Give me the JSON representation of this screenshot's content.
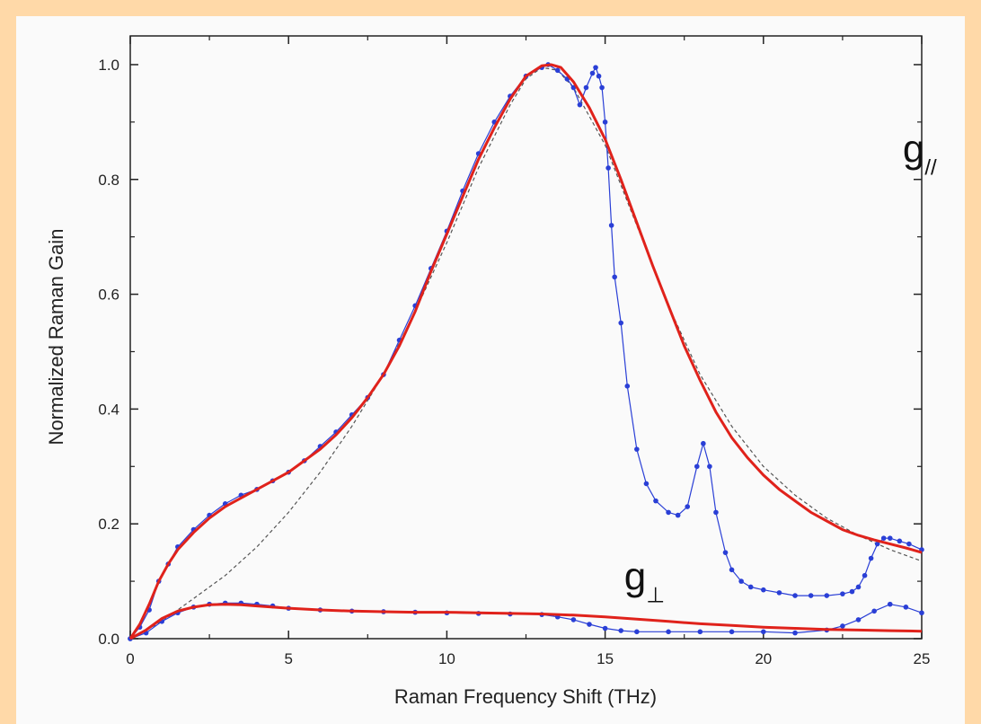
{
  "chart_data": {
    "type": "line",
    "title": "",
    "xlabel": "Raman Frequency Shift (THz)",
    "ylabel": "Normalized Raman Gain",
    "xlim": [
      0,
      25
    ],
    "ylim": [
      0,
      1.05
    ],
    "x_ticks": [
      "0",
      "5",
      "10",
      "15",
      "20",
      "25"
    ],
    "y_ticks": [
      "0.0",
      "0.2",
      "0.4",
      "0.6",
      "0.8",
      "1.0"
    ],
    "grid": false,
    "legend": "none",
    "annotations": [
      {
        "label": "g",
        "subscript": "//",
        "x": 30.5,
        "y": 0.83
      },
      {
        "label": "g",
        "subscript": "⊥",
        "x": 19.5,
        "y": 0.085
      }
    ],
    "colors": {
      "measured": "#2a3fd6",
      "fit": "#e0221b",
      "model": "#555555"
    },
    "series": [
      {
        "style": "measured",
        "x": [
          0,
          0.3,
          0.6,
          0.9,
          1.2,
          1.5,
          2,
          2.5,
          3,
          3.5,
          4,
          4.5,
          5,
          5.5,
          6,
          6.5,
          7,
          7.5,
          8,
          8.5,
          9,
          9.5,
          10,
          10.5,
          11,
          11.5,
          12,
          12.5,
          13,
          13.2,
          13.5,
          13.8,
          14,
          14.2,
          14.4,
          14.6,
          14.7,
          14.8,
          14.9,
          15,
          15.1,
          15.2,
          15.3,
          15.5,
          15.7,
          16,
          16.3,
          16.6,
          17,
          17.3,
          17.6,
          17.9,
          18.1,
          18.3,
          18.5,
          18.8,
          19,
          19.3,
          19.6,
          20,
          20.5,
          21,
          21.5,
          22,
          22.5,
          22.8,
          23,
          23.2,
          23.4,
          23.6,
          23.8,
          24,
          24.3,
          24.6,
          25
        ],
        "y": [
          0,
          0.02,
          0.05,
          0.1,
          0.13,
          0.16,
          0.19,
          0.215,
          0.235,
          0.25,
          0.26,
          0.275,
          0.29,
          0.31,
          0.335,
          0.36,
          0.39,
          0.42,
          0.46,
          0.52,
          0.58,
          0.645,
          0.71,
          0.78,
          0.845,
          0.9,
          0.945,
          0.98,
          0.995,
          1.0,
          0.99,
          0.975,
          0.96,
          0.93,
          0.96,
          0.985,
          0.995,
          0.98,
          0.96,
          0.9,
          0.82,
          0.72,
          0.63,
          0.55,
          0.44,
          0.33,
          0.27,
          0.24,
          0.22,
          0.215,
          0.23,
          0.3,
          0.34,
          0.3,
          0.22,
          0.15,
          0.12,
          0.1,
          0.09,
          0.085,
          0.08,
          0.075,
          0.075,
          0.075,
          0.078,
          0.082,
          0.09,
          0.11,
          0.14,
          0.165,
          0.175,
          0.175,
          0.17,
          0.165,
          0.155
        ]
      },
      {
        "style": "fit",
        "x": [
          0,
          0.3,
          0.6,
          0.9,
          1.2,
          1.5,
          2,
          2.5,
          3,
          3.5,
          4,
          4.5,
          5,
          5.5,
          6,
          6.5,
          7,
          7.5,
          8,
          8.5,
          9,
          9.5,
          10,
          10.5,
          11,
          11.5,
          12,
          12.5,
          13,
          13.3,
          13.6,
          14,
          14.5,
          15,
          15.5,
          16,
          16.5,
          17,
          17.5,
          18,
          18.5,
          19,
          19.5,
          20,
          20.5,
          21,
          21.5,
          22,
          22.5,
          23,
          23.5,
          24,
          24.5,
          25
        ],
        "y": [
          0,
          0.025,
          0.06,
          0.1,
          0.13,
          0.155,
          0.185,
          0.21,
          0.23,
          0.245,
          0.26,
          0.275,
          0.29,
          0.31,
          0.33,
          0.355,
          0.385,
          0.42,
          0.46,
          0.51,
          0.57,
          0.64,
          0.705,
          0.77,
          0.835,
          0.89,
          0.94,
          0.98,
          0.998,
          1.0,
          0.995,
          0.97,
          0.925,
          0.87,
          0.8,
          0.725,
          0.65,
          0.58,
          0.51,
          0.45,
          0.395,
          0.35,
          0.315,
          0.285,
          0.26,
          0.24,
          0.22,
          0.205,
          0.19,
          0.18,
          0.172,
          0.165,
          0.158,
          0.15
        ]
      },
      {
        "style": "model",
        "x": [
          0,
          1,
          2,
          3,
          4,
          5,
          6,
          7,
          8,
          9,
          10,
          11,
          12,
          12.5,
          13,
          13.5,
          14,
          15,
          16,
          17,
          18,
          19,
          20,
          21,
          22,
          23,
          24,
          25
        ],
        "y": [
          0,
          0.03,
          0.07,
          0.11,
          0.16,
          0.22,
          0.29,
          0.37,
          0.46,
          0.57,
          0.69,
          0.82,
          0.93,
          0.975,
          0.995,
          0.99,
          0.96,
          0.86,
          0.72,
          0.58,
          0.46,
          0.37,
          0.3,
          0.25,
          0.21,
          0.18,
          0.155,
          0.135
        ]
      },
      {
        "style": "measured",
        "x": [
          0,
          0.5,
          1,
          1.5,
          2,
          2.5,
          3,
          3.5,
          4,
          4.5,
          5,
          6,
          7,
          8,
          9,
          10,
          11,
          12,
          13,
          13.5,
          14,
          14.5,
          15,
          15.5,
          16,
          17,
          18,
          19,
          20,
          21,
          22,
          22.5,
          23,
          23.5,
          24,
          24.5,
          25
        ],
        "y": [
          0,
          0.01,
          0.03,
          0.045,
          0.055,
          0.06,
          0.062,
          0.062,
          0.06,
          0.057,
          0.053,
          0.05,
          0.048,
          0.047,
          0.046,
          0.045,
          0.044,
          0.043,
          0.042,
          0.038,
          0.033,
          0.025,
          0.018,
          0.014,
          0.012,
          0.012,
          0.012,
          0.012,
          0.012,
          0.01,
          0.015,
          0.022,
          0.033,
          0.048,
          0.06,
          0.055,
          0.045
        ]
      },
      {
        "style": "fit",
        "x": [
          0,
          0.5,
          1,
          1.5,
          2,
          2.5,
          3,
          3.5,
          4,
          5,
          6,
          7,
          8,
          9,
          10,
          11,
          12,
          13,
          14,
          15,
          16,
          17,
          18,
          19,
          20,
          21,
          22,
          23,
          24,
          25
        ],
        "y": [
          0,
          0.015,
          0.035,
          0.048,
          0.055,
          0.059,
          0.06,
          0.059,
          0.057,
          0.053,
          0.05,
          0.048,
          0.047,
          0.046,
          0.046,
          0.045,
          0.044,
          0.043,
          0.041,
          0.038,
          0.034,
          0.03,
          0.026,
          0.023,
          0.02,
          0.018,
          0.016,
          0.015,
          0.014,
          0.013
        ]
      }
    ]
  }
}
